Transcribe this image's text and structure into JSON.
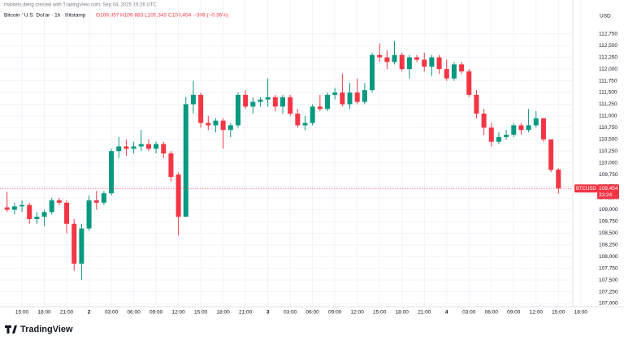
{
  "chart_data": {
    "type": "candlestick",
    "credit": "marketsuberg created with TradingView.com, Sep 04, 2025 15:26 UTC",
    "symbol": "Bitcoin / U.S. Dollar · 1h · Bitstamp",
    "legend_open": "O109,857",
    "legend_high": "H109,883",
    "legend_low": "L109,343",
    "legend_close": "C109,454",
    "legend_change": "−399 (−0.36%)",
    "currency": "USD",
    "ticker": "BTCUSD",
    "last_price_label": "109,454",
    "countdown": "33:24",
    "logo": "TradingView",
    "up_color": "#089981",
    "down_color": "#f23645",
    "grid": true,
    "categories": [
      null,
      null,
      "15:00",
      null,
      null,
      "18:00",
      null,
      null,
      "21:00",
      null,
      null,
      "2",
      null,
      null,
      "03:00",
      null,
      null,
      "06:00",
      null,
      null,
      "09:00",
      null,
      null,
      "12:00",
      null,
      null,
      "15:00",
      null,
      null,
      "18:00",
      null,
      null,
      "21:00",
      null,
      null,
      "3",
      null,
      null,
      "03:00",
      null,
      null,
      "06:00",
      null,
      null,
      "09:00",
      null,
      null,
      "12:00",
      null,
      null,
      "15:00",
      null,
      null,
      "18:00",
      null,
      null,
      "21:00",
      null,
      null,
      "4",
      null,
      null,
      "03:00",
      null,
      null,
      "06:00",
      null,
      null,
      "09:00",
      null,
      null,
      "12:00",
      null,
      null,
      "15:00",
      null,
      null,
      "18:00"
    ],
    "open": [
      109050,
      109000,
      109070,
      109100,
      108800,
      108850,
      108950,
      109200,
      109150,
      108700,
      107850,
      108600,
      109200,
      109150,
      109350,
      110250,
      110350,
      110300,
      110350,
      110400,
      110300,
      110400,
      110200,
      109750,
      108850,
      111250,
      111450,
      110850,
      110800,
      110900,
      110700,
      110800,
      111450,
      111200,
      111300,
      111350,
      111400,
      111200,
      111400,
      111050,
      110800,
      110850,
      111200,
      111150,
      111450,
      111500,
      111250,
      111500,
      111300,
      111550,
      112300,
      112250,
      112150,
      112300,
      112000,
      112250,
      112200,
      112050,
      112250,
      112000,
      111800,
      112100,
      111950,
      111450,
      111050,
      110750,
      110450,
      110550,
      110600,
      110800,
      110700,
      110800,
      110950,
      110500,
      109857,
      null,
      null,
      null
    ],
    "high": [
      109380,
      109150,
      109200,
      109150,
      108950,
      109000,
      109250,
      109250,
      109200,
      108800,
      108700,
      109300,
      109400,
      109400,
      110300,
      110550,
      110500,
      110450,
      110700,
      110500,
      110450,
      110450,
      110250,
      109800,
      111400,
      111750,
      111500,
      111000,
      110950,
      110950,
      110850,
      111500,
      111550,
      111400,
      111400,
      111800,
      111450,
      111450,
      111450,
      111150,
      111000,
      111250,
      111450,
      111500,
      111600,
      111900,
      111700,
      111800,
      111700,
      112350,
      112550,
      112400,
      112600,
      112350,
      112300,
      112300,
      112350,
      112300,
      112300,
      112200,
      112150,
      112150,
      112000,
      111550,
      111150,
      110850,
      110650,
      110700,
      110850,
      110850,
      111150,
      111100,
      110950,
      110500,
      109883,
      null,
      null,
      null
    ],
    "low": [
      108950,
      108900,
      108950,
      108700,
      108700,
      108650,
      108900,
      109100,
      108500,
      107700,
      107500,
      108550,
      109000,
      109100,
      109300,
      110100,
      110150,
      110200,
      110250,
      110250,
      110200,
      110100,
      109600,
      108450,
      108850,
      111050,
      110750,
      110700,
      110650,
      110300,
      110550,
      110750,
      111150,
      111050,
      111200,
      111200,
      111100,
      111050,
      111000,
      110750,
      110700,
      110800,
      111100,
      111100,
      111350,
      111200,
      111150,
      111250,
      111250,
      111500,
      112150,
      112000,
      112100,
      111950,
      111800,
      112150,
      111950,
      111850,
      111900,
      111750,
      111750,
      111900,
      111400,
      110950,
      110600,
      110350,
      110400,
      110500,
      110550,
      110600,
      110650,
      110750,
      110450,
      109800,
      109343,
      null,
      null,
      null
    ],
    "close": [
      109000,
      109070,
      109100,
      108800,
      108850,
      108950,
      109200,
      109150,
      108700,
      107850,
      108600,
      109200,
      109150,
      109350,
      110250,
      110350,
      110300,
      110350,
      110400,
      110300,
      110400,
      110200,
      109700,
      108850,
      111250,
      111450,
      110850,
      110800,
      110900,
      110700,
      110800,
      111450,
      111200,
      111300,
      111350,
      111400,
      111200,
      111400,
      111050,
      110800,
      110850,
      111200,
      111150,
      111450,
      111500,
      111250,
      111500,
      111300,
      111550,
      112300,
      112250,
      112150,
      112300,
      112000,
      112250,
      112200,
      112050,
      112250,
      112000,
      111800,
      112100,
      111950,
      111450,
      111050,
      110750,
      110450,
      110550,
      110600,
      110800,
      110700,
      110800,
      110950,
      110500,
      109850,
      109454,
      null,
      null,
      null
    ],
    "ylim": [
      107000,
      113300
    ],
    "yticks": [
      {
        "value": 107000,
        "label": "107,000"
      },
      {
        "value": 107250,
        "label": "107,250"
      },
      {
        "value": 107500,
        "label": "107,500"
      },
      {
        "value": 107750,
        "label": "107,750"
      },
      {
        "value": 108000,
        "label": "108,000"
      },
      {
        "value": 108250,
        "label": "108,250"
      },
      {
        "value": 108500,
        "label": "108,500"
      },
      {
        "value": 108750,
        "label": "108,750"
      },
      {
        "value": 109000,
        "label": "109,000"
      },
      {
        "value": 109250,
        "label": "109,250"
      },
      {
        "value": 109500,
        "label": "109,500"
      },
      {
        "value": 109750,
        "label": "109,750"
      },
      {
        "value": 110000,
        "label": "110,000"
      },
      {
        "value": 110250,
        "label": "110,250"
      },
      {
        "value": 110500,
        "label": "110,500"
      },
      {
        "value": 110750,
        "label": "110,750"
      },
      {
        "value": 111000,
        "label": "111,000"
      },
      {
        "value": 111250,
        "label": "111,250"
      },
      {
        "value": 111500,
        "label": "111,500"
      },
      {
        "value": 111750,
        "label": "111,750"
      },
      {
        "value": 112000,
        "label": "112,000"
      },
      {
        "value": 112250,
        "label": "112,250"
      },
      {
        "value": 112500,
        "label": "112,500"
      },
      {
        "value": 112750,
        "label": "112,750"
      }
    ]
  }
}
